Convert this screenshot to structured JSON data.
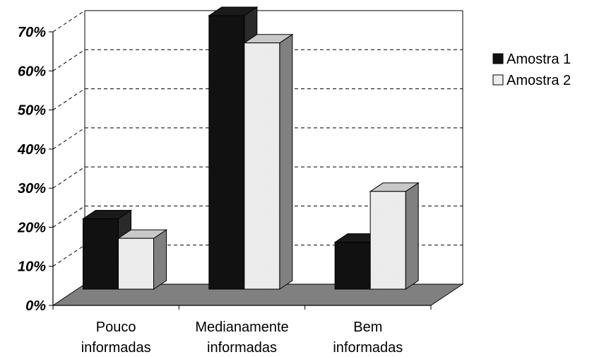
{
  "chart_data": {
    "type": "bar",
    "title": "",
    "xlabel": "",
    "ylabel": "",
    "categories": [
      [
        "Pouco",
        "informadas"
      ],
      [
        "Medianamente",
        "informadas"
      ],
      [
        "Bem",
        "informadas"
      ]
    ],
    "series": [
      {
        "name": "Amostra 1",
        "values": [
          18,
          70,
          12
        ],
        "color": "#111111"
      },
      {
        "name": "Amostra 2",
        "values": [
          13,
          63,
          25
        ],
        "color": "#f2f2f2"
      }
    ],
    "ylim": [
      0,
      70
    ],
    "yticks": [
      0,
      10,
      20,
      30,
      40,
      50,
      60,
      70
    ],
    "ytick_labels": [
      "0%",
      "10%",
      "20%",
      "30%",
      "40%",
      "50%",
      "60%",
      "70%"
    ],
    "grid": true,
    "legend": "right",
    "style": "3d-clustered-column",
    "floor_color": "#808080"
  }
}
